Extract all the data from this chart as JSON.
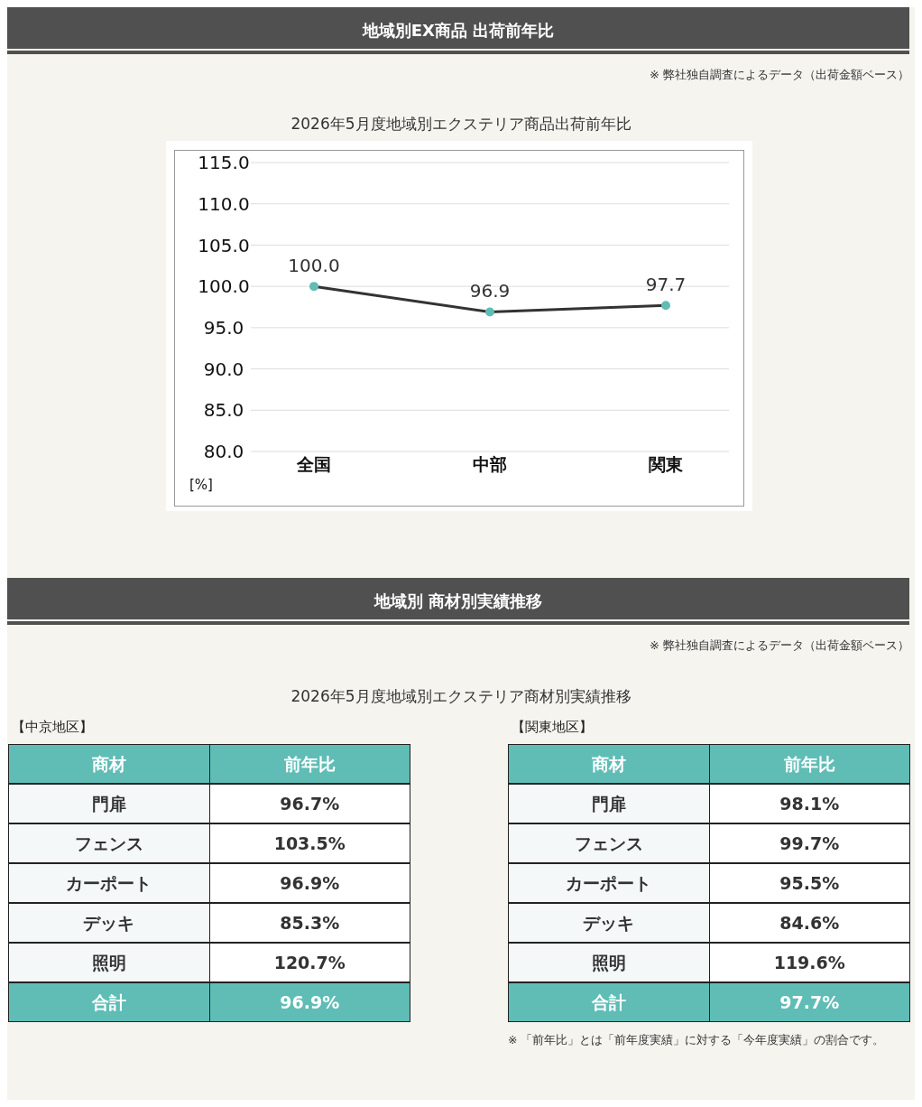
{
  "chart_data": [
    {
      "type": "line",
      "title": "地域別EX商品 出荷前年比",
      "subtitle": "2026年5月度地域別エクステリア商品出荷前年比",
      "annotations": [
        "※ 弊社独自調査によるデータ（出荷金額ベース）"
      ],
      "categories": [
        "全国",
        "中部",
        "関東"
      ],
      "ylabel": "[%]",
      "ylim": [
        80,
        115
      ],
      "yticks": [
        {
          "value": 80,
          "label": "80.0"
        },
        {
          "value": 85,
          "label": "85.0"
        },
        {
          "value": 90,
          "label": "90.0"
        },
        {
          "value": 95,
          "label": "95.0"
        },
        {
          "value": 100,
          "label": "100.0"
        },
        {
          "value": 105,
          "label": "105.0"
        },
        {
          "value": 110,
          "label": "110.0"
        },
        {
          "value": 115,
          "label": "115.0"
        }
      ],
      "grid": "y",
      "marker": "circle",
      "line_style": "solid",
      "series": [
        {
          "color": "#333333",
          "values": [
            100.0,
            96.9,
            97.7
          ],
          "value_labels": [
            "100.0",
            "96.9",
            "97.7"
          ]
        }
      ]
    },
    {
      "type": "other",
      "title": "地域別 商材別実績推移",
      "subtitle": "2026年5月度地域別エクステリア商材別実績推移",
      "annotations": [
        "※ 弊社独自調査によるデータ（出荷金額ベース）",
        "【中京地区】"
      ],
      "xlabel": "商材",
      "ylabel": "前年比",
      "categories": [
        "門扉",
        "フェンス",
        "カーポート",
        "デッキ",
        "照明",
        "合計"
      ],
      "values": [
        96.7,
        103.5,
        96.9,
        85.3,
        120.7,
        96.9
      ],
      "value_labels": [
        "96.7%",
        "103.5%",
        "96.9%",
        "85.3%",
        "120.7%",
        "96.9%"
      ]
    },
    {
      "type": "other",
      "title": "【関東地区】",
      "annotations": [
        "※ 「前年比」とは「前年度実績」に対する「今年度実績」の割合です。"
      ],
      "xlabel": "商材",
      "ylabel": "前年比",
      "categories": [
        "門扉",
        "フェンス",
        "カーポート",
        "デッキ",
        "照明",
        "合計"
      ],
      "values": [
        98.1,
        99.7,
        95.5,
        84.6,
        119.6,
        97.7
      ],
      "value_labels": [
        "98.1%",
        "99.7%",
        "95.5%",
        "84.6%",
        "119.6%",
        "97.7%"
      ]
    }
  ]
}
